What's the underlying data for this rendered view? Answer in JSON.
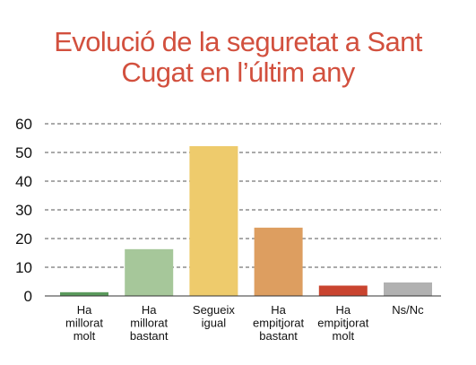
{
  "title_line1": "Evolució de la seguretat a Sant",
  "title_line2": "Cugat en l’últim any",
  "chart_data": {
    "type": "bar",
    "title": "Evolució de la seguretat a Sant Cugat en l’últim any",
    "xlabel": "",
    "ylabel": "",
    "ylim": [
      0,
      60
    ],
    "yticks": [
      0,
      10,
      20,
      30,
      40,
      50,
      60
    ],
    "grid": true,
    "categories": [
      [
        "Ha",
        "millorat",
        "molt"
      ],
      [
        "Ha",
        "millorat",
        "bastant"
      ],
      [
        "Segueix",
        "igual"
      ],
      [
        "Ha",
        "empitjorat",
        "bastant"
      ],
      [
        "Ha",
        "empitjorat",
        "molt"
      ],
      [
        "Ns/Nc"
      ]
    ],
    "values": [
      1.3,
      16.3,
      52.2,
      23.8,
      3.6,
      4.7
    ],
    "colors": [
      "#5a9a5c",
      "#a6c79a",
      "#eecb6c",
      "#dd9e60",
      "#c9442f",
      "#b1b1b1"
    ]
  }
}
